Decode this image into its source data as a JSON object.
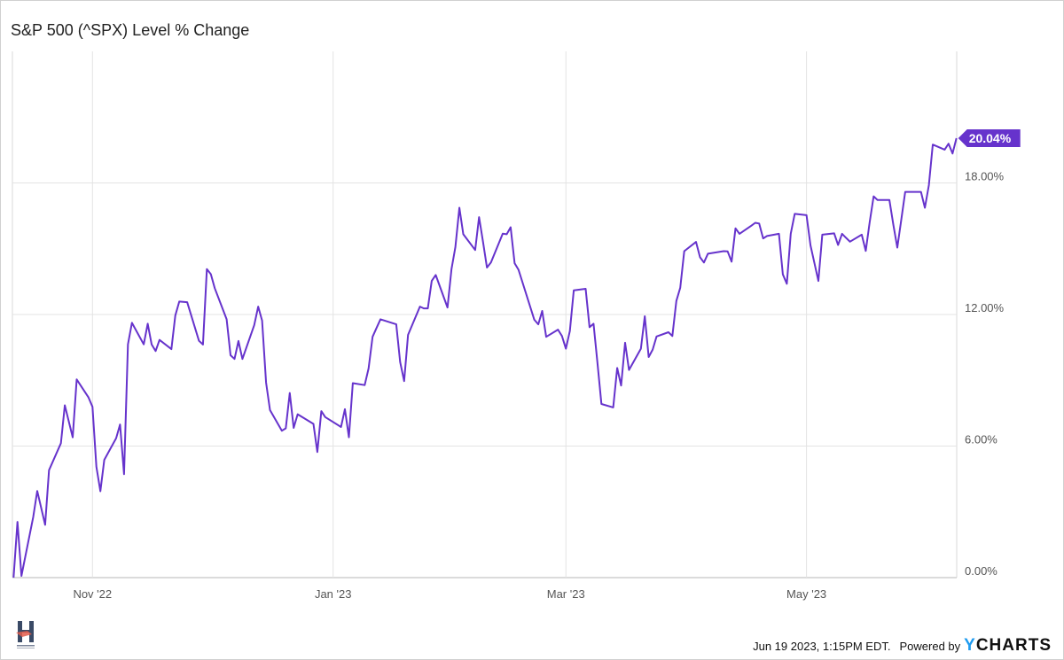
{
  "chart_data": {
    "type": "line",
    "title": "S&P 500 (^SPX) Level % Change",
    "xlabel": "",
    "ylabel": "",
    "x_ticks": [
      {
        "date": "2022-11-01",
        "label": "Nov '22"
      },
      {
        "date": "2023-01-01",
        "label": "Jan '23"
      },
      {
        "date": "2023-03-01",
        "label": "Mar '23"
      },
      {
        "date": "2023-05-01",
        "label": "May '23"
      }
    ],
    "y_ticks": [
      {
        "value": 0,
        "label": "0.00%"
      },
      {
        "value": 6,
        "label": "6.00%"
      },
      {
        "value": 12,
        "label": "12.00%"
      },
      {
        "value": 18,
        "label": "18.00%"
      }
    ],
    "xlim": [
      "2022-10-12",
      "2023-06-08"
    ],
    "ylim": [
      0,
      24
    ],
    "grid": true,
    "y_axis_position": "right",
    "line_color": "#6633cc",
    "last_value_label": "20.04%",
    "series": [
      {
        "points": [
          [
            "2022-10-12",
            0.0
          ],
          [
            "2022-10-13",
            2.54
          ],
          [
            "2022-10-14",
            0.08
          ],
          [
            "2022-10-17",
            2.77
          ],
          [
            "2022-10-18",
            3.95
          ],
          [
            "2022-10-20",
            2.41
          ],
          [
            "2022-10-21",
            4.9
          ],
          [
            "2022-10-24",
            6.13
          ],
          [
            "2022-10-25",
            7.86
          ],
          [
            "2022-10-27",
            6.4
          ],
          [
            "2022-10-28",
            9.04
          ],
          [
            "2022-10-31",
            8.22
          ],
          [
            "2022-11-01",
            7.79
          ],
          [
            "2022-11-02",
            5.06
          ],
          [
            "2022-11-03",
            3.94
          ],
          [
            "2022-11-04",
            5.37
          ],
          [
            "2022-11-07",
            6.36
          ],
          [
            "2022-11-08",
            6.98
          ],
          [
            "2022-11-09",
            4.72
          ],
          [
            "2022-11-10",
            10.64
          ],
          [
            "2022-11-11",
            11.62
          ],
          [
            "2022-11-14",
            10.64
          ],
          [
            "2022-11-15",
            11.58
          ],
          [
            "2022-11-16",
            10.64
          ],
          [
            "2022-11-17",
            10.33
          ],
          [
            "2022-11-18",
            10.84
          ],
          [
            "2022-11-21",
            10.42
          ],
          [
            "2022-11-22",
            11.95
          ],
          [
            "2022-11-23",
            12.59
          ],
          [
            "2022-11-25",
            12.56
          ],
          [
            "2022-11-28",
            10.8
          ],
          [
            "2022-11-29",
            10.63
          ],
          [
            "2022-11-30",
            14.07
          ],
          [
            "2022-12-01",
            13.84
          ],
          [
            "2022-12-02",
            13.2
          ],
          [
            "2022-12-05",
            11.78
          ],
          [
            "2022-12-06",
            10.14
          ],
          [
            "2022-12-07",
            9.97
          ],
          [
            "2022-12-08",
            10.79
          ],
          [
            "2022-12-09",
            9.97
          ],
          [
            "2022-12-12",
            11.51
          ],
          [
            "2022-12-13",
            12.36
          ],
          [
            "2022-12-14",
            11.72
          ],
          [
            "2022-12-15",
            8.89
          ],
          [
            "2022-12-16",
            7.64
          ],
          [
            "2022-12-19",
            6.7
          ],
          [
            "2022-12-20",
            6.81
          ],
          [
            "2022-12-21",
            8.42
          ],
          [
            "2022-12-22",
            6.83
          ],
          [
            "2022-12-23",
            7.45
          ],
          [
            "2022-12-27",
            7.01
          ],
          [
            "2022-12-28",
            5.73
          ],
          [
            "2022-12-29",
            7.59
          ],
          [
            "2022-12-30",
            7.32
          ],
          [
            "2023-01-03",
            6.87
          ],
          [
            "2023-01-04",
            7.68
          ],
          [
            "2023-01-05",
            6.4
          ],
          [
            "2023-01-06",
            8.87
          ],
          [
            "2023-01-09",
            8.78
          ],
          [
            "2023-01-10",
            9.54
          ],
          [
            "2023-01-11",
            10.98
          ],
          [
            "2023-01-12",
            11.38
          ],
          [
            "2023-01-13",
            11.78
          ],
          [
            "2023-01-17",
            11.55
          ],
          [
            "2023-01-18",
            9.83
          ],
          [
            "2023-01-19",
            8.96
          ],
          [
            "2023-01-20",
            11.07
          ],
          [
            "2023-01-23",
            12.36
          ],
          [
            "2023-01-24",
            12.28
          ],
          [
            "2023-01-25",
            12.28
          ],
          [
            "2023-01-26",
            13.53
          ],
          [
            "2023-01-27",
            13.8
          ],
          [
            "2023-01-30",
            12.32
          ],
          [
            "2023-01-31",
            14.07
          ],
          [
            "2023-02-01",
            15.08
          ],
          [
            "2023-02-02",
            16.87
          ],
          [
            "2023-02-03",
            15.66
          ],
          [
            "2023-02-06",
            14.94
          ],
          [
            "2023-02-07",
            16.44
          ],
          [
            "2023-02-08",
            15.3
          ],
          [
            "2023-02-09",
            14.14
          ],
          [
            "2023-02-10",
            14.37
          ],
          [
            "2023-02-13",
            15.69
          ],
          [
            "2023-02-14",
            15.66
          ],
          [
            "2023-02-15",
            15.98
          ],
          [
            "2023-02-16",
            14.34
          ],
          [
            "2023-02-17",
            14.04
          ],
          [
            "2023-02-21",
            11.76
          ],
          [
            "2023-02-22",
            11.55
          ],
          [
            "2023-02-23",
            12.16
          ],
          [
            "2023-02-24",
            10.98
          ],
          [
            "2023-02-27",
            11.31
          ],
          [
            "2023-02-28",
            11.02
          ],
          [
            "2023-03-01",
            10.44
          ],
          [
            "2023-03-02",
            11.25
          ],
          [
            "2023-03-03",
            13.1
          ],
          [
            "2023-03-06",
            13.17
          ],
          [
            "2023-03-07",
            11.42
          ],
          [
            "2023-03-08",
            11.58
          ],
          [
            "2023-03-09",
            9.8
          ],
          [
            "2023-03-10",
            7.92
          ],
          [
            "2023-03-13",
            7.76
          ],
          [
            "2023-03-14",
            9.56
          ],
          [
            "2023-03-15",
            8.76
          ],
          [
            "2023-03-16",
            10.71
          ],
          [
            "2023-03-17",
            9.47
          ],
          [
            "2023-03-20",
            10.44
          ],
          [
            "2023-03-21",
            11.92
          ],
          [
            "2023-03-22",
            10.06
          ],
          [
            "2023-03-23",
            10.4
          ],
          [
            "2023-03-24",
            11.0
          ],
          [
            "2023-03-27",
            11.19
          ],
          [
            "2023-03-28",
            11.02
          ],
          [
            "2023-03-29",
            12.62
          ],
          [
            "2023-03-30",
            13.22
          ],
          [
            "2023-03-31",
            14.89
          ],
          [
            "2023-04-03",
            15.31
          ],
          [
            "2023-04-04",
            14.61
          ],
          [
            "2023-04-05",
            14.37
          ],
          [
            "2023-04-06",
            14.77
          ],
          [
            "2023-04-10",
            14.89
          ],
          [
            "2023-04-11",
            14.88
          ],
          [
            "2023-04-12",
            14.41
          ],
          [
            "2023-04-13",
            15.93
          ],
          [
            "2023-04-14",
            15.68
          ],
          [
            "2023-04-17",
            16.05
          ],
          [
            "2023-04-18",
            16.18
          ],
          [
            "2023-04-19",
            16.15
          ],
          [
            "2023-04-20",
            15.47
          ],
          [
            "2023-04-21",
            15.58
          ],
          [
            "2023-04-24",
            15.68
          ],
          [
            "2023-04-25",
            13.83
          ],
          [
            "2023-04-26",
            13.4
          ],
          [
            "2023-04-27",
            15.68
          ],
          [
            "2023-04-28",
            16.59
          ],
          [
            "2023-05-01",
            16.53
          ],
          [
            "2023-05-02",
            15.15
          ],
          [
            "2023-05-03",
            14.35
          ],
          [
            "2023-05-04",
            13.53
          ],
          [
            "2023-05-05",
            15.64
          ],
          [
            "2023-05-08",
            15.7
          ],
          [
            "2023-05-09",
            15.17
          ],
          [
            "2023-05-10",
            15.68
          ],
          [
            "2023-05-11",
            15.5
          ],
          [
            "2023-05-12",
            15.32
          ],
          [
            "2023-05-15",
            15.64
          ],
          [
            "2023-05-16",
            14.9
          ],
          [
            "2023-05-17",
            16.2
          ],
          [
            "2023-05-18",
            17.39
          ],
          [
            "2023-05-19",
            17.22
          ],
          [
            "2023-05-22",
            17.22
          ],
          [
            "2023-05-23",
            16.1
          ],
          [
            "2023-05-24",
            15.05
          ],
          [
            "2023-05-25",
            16.3
          ],
          [
            "2023-05-26",
            17.59
          ],
          [
            "2023-05-30",
            17.59
          ],
          [
            "2023-05-31",
            16.87
          ],
          [
            "2023-06-01",
            17.9
          ],
          [
            "2023-06-02",
            19.75
          ],
          [
            "2023-06-05",
            19.52
          ],
          [
            "2023-06-06",
            19.79
          ],
          [
            "2023-06-07",
            19.34
          ],
          [
            "2023-06-08",
            20.04
          ]
        ]
      }
    ]
  },
  "footer": {
    "timestamp": "Jun 19 2023, 1:15PM EDT.",
    "powered_by": "Powered by",
    "brand_y": "Y",
    "brand_rest": "CHARTS"
  },
  "logo": {
    "icon": "h-logo-icon",
    "color": "#3a4a66",
    "accent": "#e05a4a"
  }
}
